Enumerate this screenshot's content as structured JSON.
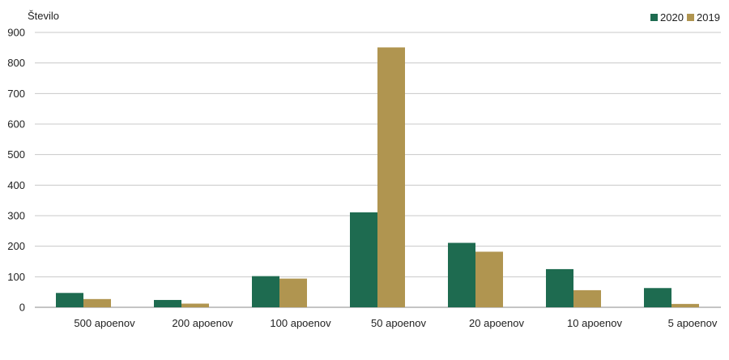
{
  "chart_data": {
    "type": "bar",
    "ylabel": "Število",
    "xlabel": "",
    "title": "",
    "ylim": [
      0,
      900
    ],
    "yticks": [
      0,
      100,
      200,
      300,
      400,
      500,
      600,
      700,
      800,
      900
    ],
    "grid": true,
    "legend_position": "top-right",
    "categories": [
      "500 apoenov",
      "200 apoenov",
      "100 apoenov",
      "50 apoenov",
      "20 apoenov",
      "10 apoenov",
      "5 apoenov"
    ],
    "series": [
      {
        "name": "2020",
        "color": "#1e6b50",
        "values": [
          47,
          24,
          102,
          311,
          211,
          125,
          63
        ]
      },
      {
        "name": "2019",
        "color": "#b09550",
        "values": [
          27,
          12,
          94,
          851,
          182,
          56,
          11
        ]
      }
    ]
  }
}
